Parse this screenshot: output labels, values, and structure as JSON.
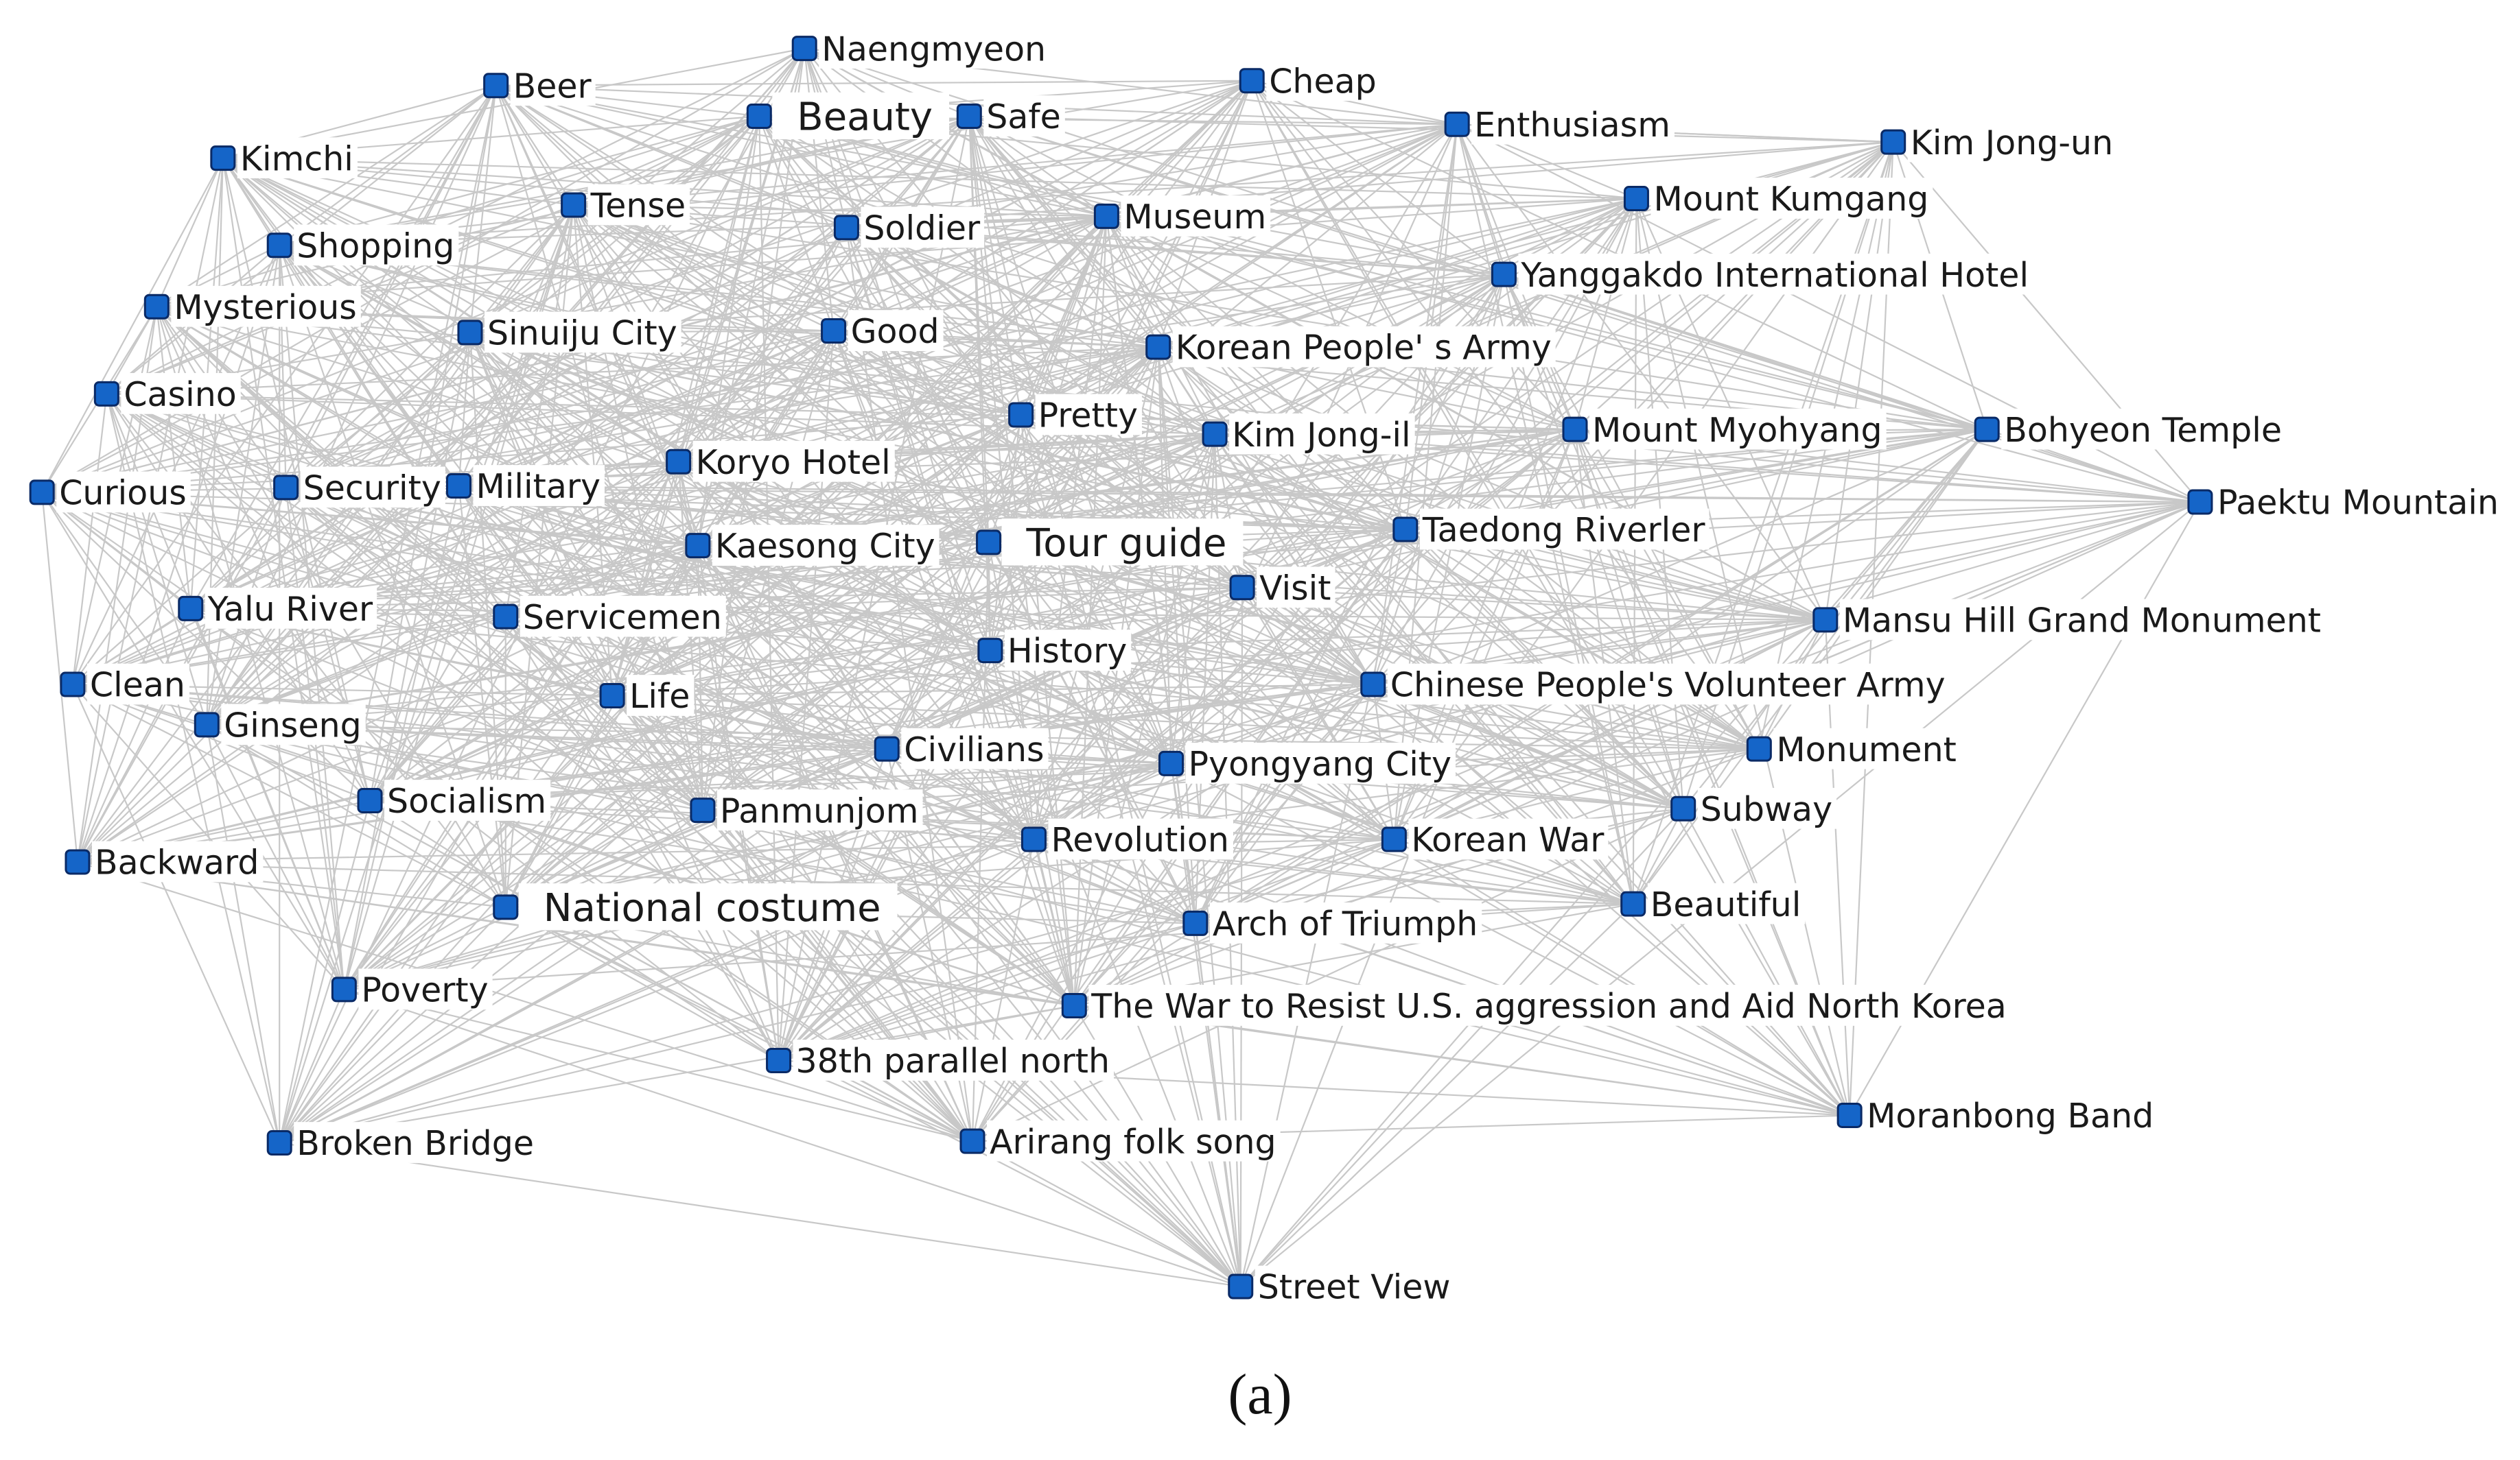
{
  "caption": "(a)",
  "node_color": "#1565c8",
  "edge_color": "#c8c8c8",
  "nodes": [
    {
      "id": "naengmyeon",
      "label": "Naengmyeon"
    },
    {
      "id": "beer",
      "label": "Beer"
    },
    {
      "id": "beauty",
      "label": "Beauty",
      "emphasis": true
    },
    {
      "id": "safe",
      "label": "Safe"
    },
    {
      "id": "cheap",
      "label": "Cheap"
    },
    {
      "id": "enthusiasm",
      "label": "Enthusiasm"
    },
    {
      "id": "kim-jong-un",
      "label": "Kim Jong-un"
    },
    {
      "id": "kimchi",
      "label": "Kimchi"
    },
    {
      "id": "tense",
      "label": "Tense"
    },
    {
      "id": "mount-kumgang",
      "label": "Mount Kumgang"
    },
    {
      "id": "shopping",
      "label": "Shopping"
    },
    {
      "id": "soldier",
      "label": "Soldier"
    },
    {
      "id": "museum",
      "label": "Museum"
    },
    {
      "id": "yanggakdo",
      "label": "Yanggakdo International Hotel"
    },
    {
      "id": "mysterious",
      "label": "Mysterious"
    },
    {
      "id": "sinuiju",
      "label": "Sinuiju City"
    },
    {
      "id": "good",
      "label": "Good"
    },
    {
      "id": "kpa",
      "label": "Korean People' s Army"
    },
    {
      "id": "casino",
      "label": "Casino"
    },
    {
      "id": "pretty",
      "label": "Pretty"
    },
    {
      "id": "kim-jong-il",
      "label": "Kim Jong-il"
    },
    {
      "id": "mount-myohyang",
      "label": "Mount Myohyang"
    },
    {
      "id": "bohyeon",
      "label": "Bohyeon Temple"
    },
    {
      "id": "curious",
      "label": "Curious"
    },
    {
      "id": "security",
      "label": "Security"
    },
    {
      "id": "military",
      "label": "Military"
    },
    {
      "id": "koryo-hotel",
      "label": "Koryo Hotel"
    },
    {
      "id": "paektu",
      "label": "Paektu Mountain"
    },
    {
      "id": "kaesong",
      "label": "Kaesong City"
    },
    {
      "id": "tour-guide",
      "label": "Tour guide",
      "emphasis": true
    },
    {
      "id": "taedong",
      "label": "Taedong Riverler"
    },
    {
      "id": "visit",
      "label": "Visit"
    },
    {
      "id": "yalu",
      "label": "Yalu River"
    },
    {
      "id": "servicemen",
      "label": "Servicemen"
    },
    {
      "id": "mansu",
      "label": "Mansu Hill Grand Monument"
    },
    {
      "id": "history",
      "label": "History"
    },
    {
      "id": "clean",
      "label": "Clean"
    },
    {
      "id": "life",
      "label": "Life"
    },
    {
      "id": "cpva",
      "label": "Chinese People's Volunteer Army"
    },
    {
      "id": "ginseng",
      "label": "Ginseng"
    },
    {
      "id": "civilians",
      "label": "Civilians"
    },
    {
      "id": "pyongyang",
      "label": "Pyongyang City"
    },
    {
      "id": "monument",
      "label": "Monument"
    },
    {
      "id": "socialism",
      "label": "Socialism"
    },
    {
      "id": "panmunjom",
      "label": "Panmunjom"
    },
    {
      "id": "subway",
      "label": "Subway"
    },
    {
      "id": "backward",
      "label": "Backward"
    },
    {
      "id": "revolution",
      "label": "Revolution"
    },
    {
      "id": "korean-war",
      "label": "Korean War"
    },
    {
      "id": "national-costume",
      "label": "National costume",
      "emphasis": true
    },
    {
      "id": "beautiful",
      "label": "Beautiful"
    },
    {
      "id": "arch",
      "label": "Arch of Triumph"
    },
    {
      "id": "poverty",
      "label": "Poverty"
    },
    {
      "id": "war-resist",
      "label": "The War to Resist U.S. aggression and Aid North Korea"
    },
    {
      "id": "38th",
      "label": "38th parallel north"
    },
    {
      "id": "moranbong",
      "label": "Moranbong Band"
    },
    {
      "id": "broken-bridge",
      "label": "Broken Bridge"
    },
    {
      "id": "arirang",
      "label": "Arirang folk song"
    },
    {
      "id": "street-view",
      "label": "Street View"
    }
  ]
}
